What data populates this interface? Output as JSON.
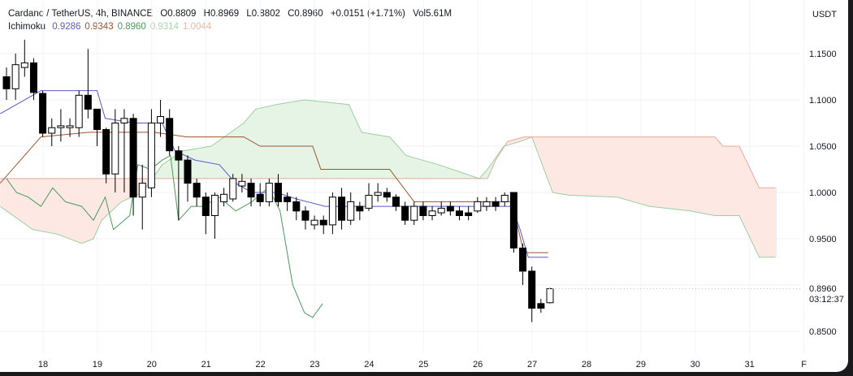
{
  "header": {
    "symbol": "Cardano / TetherUS, 4h, BINANCE",
    "open": "O0.8809",
    "high": "H0.8969",
    "low": "L0.8802",
    "close": "C0.8960",
    "change": "+0.0151 (+1.71%)",
    "volume": "Vol5.61M"
  },
  "ichimoku": {
    "label": "Ichimoku",
    "values": [
      {
        "v": "0.9286",
        "color": "#5b57d1"
      },
      {
        "v": "0.9343",
        "color": "#a0522d"
      },
      {
        "v": "0.8960",
        "color": "#4a9a5a"
      },
      {
        "v": "0.9314",
        "color": "#a8d5b0"
      },
      {
        "v": "1.0044",
        "color": "#e8b9a8"
      }
    ]
  },
  "axis": {
    "unit": "USDT",
    "price_labels": [
      "1.1500",
      "1.1000",
      "1.0500",
      "1.0000",
      "0.9500",
      "0.8500"
    ],
    "price_values": [
      1.15,
      1.1,
      1.05,
      1.0,
      0.95,
      0.85
    ],
    "last_price": "0.8960",
    "countdown": "03:12:37",
    "time_labels": [
      "18",
      "19",
      "20",
      "21",
      "22",
      "23",
      "24",
      "25",
      "26",
      "27",
      "28",
      "29",
      "30",
      "31",
      "F"
    ]
  },
  "colors": {
    "up": "#ffffff",
    "down": "#000000",
    "tenkan": "#5b57d1",
    "kijun": "#a0522d",
    "lagging": "#4a9a5a",
    "cloud_up": "#e6f4e6",
    "cloud_down": "#fde8e4",
    "spanA": "#9ccf9f",
    "spanB": "#e8a99b"
  },
  "chart_data": {
    "type": "candlestick",
    "candles": [
      [
        1.125,
        1.135,
        1.1,
        1.112
      ],
      [
        1.112,
        1.15,
        1.1,
        1.138
      ],
      [
        1.135,
        1.165,
        1.125,
        1.14
      ],
      [
        1.14,
        1.145,
        1.1,
        1.108
      ],
      [
        1.107,
        1.11,
        1.06,
        1.064
      ],
      [
        1.064,
        1.08,
        1.05,
        1.07
      ],
      [
        1.07,
        1.09,
        1.055,
        1.072
      ],
      [
        1.07,
        1.08,
        1.06,
        1.072
      ],
      [
        1.07,
        1.11,
        1.06,
        1.105
      ],
      [
        1.105,
        1.155,
        1.08,
        1.09
      ],
      [
        1.09,
        1.09,
        1.05,
        1.068
      ],
      [
        1.068,
        1.07,
        1.01,
        1.02
      ],
      [
        1.02,
        1.09,
        1.0,
        1.075
      ],
      [
        1.075,
        1.09,
        1.0,
        1.08
      ],
      [
        1.08,
        1.085,
        0.975,
        0.995
      ],
      [
        0.995,
        1.03,
        0.96,
        1.01
      ],
      [
        1.005,
        1.09,
        0.995,
        1.075
      ],
      [
        1.075,
        1.1,
        1.06,
        1.082
      ],
      [
        1.08,
        1.09,
        1.04,
        1.045
      ],
      [
        1.045,
        1.05,
        0.97,
        1.035
      ],
      [
        1.035,
        1.04,
        0.99,
        1.01
      ],
      [
        1.01,
        1.015,
        0.985,
        0.995
      ],
      [
        0.995,
        1.0,
        0.955,
        0.975
      ],
      [
        0.975,
        1.0,
        0.95,
        0.997
      ],
      [
        0.99,
        1.005,
        0.985,
        0.998
      ],
      [
        0.993,
        1.02,
        0.99,
        1.015
      ],
      [
        1.007,
        1.02,
        1.0,
        1.012
      ],
      [
        1.01,
        1.015,
        0.985,
        0.995
      ],
      [
        0.998,
        1.01,
        0.985,
        0.99
      ],
      [
        0.99,
        1.015,
        0.985,
        1.01
      ],
      [
        1.01,
        1.02,
        0.985,
        0.99
      ],
      [
        0.995,
        1.0,
        0.98,
        0.99
      ],
      [
        0.99,
        0.995,
        0.97,
        0.98
      ],
      [
        0.98,
        0.985,
        0.96,
        0.97
      ],
      [
        0.965,
        0.975,
        0.96,
        0.97
      ],
      [
        0.97,
        0.975,
        0.955,
        0.965
      ],
      [
        0.965,
        1.0,
        0.955,
        0.995
      ],
      [
        0.995,
        1.005,
        0.96,
        0.97
      ],
      [
        0.97,
        1.0,
        0.965,
        0.99
      ],
      [
        0.985,
        0.99,
        0.97,
        0.98
      ],
      [
        0.983,
        1.01,
        0.98,
        0.997
      ],
      [
        0.997,
        1.01,
        0.99,
        1.0
      ],
      [
        1.0,
        1.005,
        0.99,
        0.995
      ],
      [
        0.995,
        0.998,
        0.98,
        0.985
      ],
      [
        0.985,
        0.99,
        0.965,
        0.97
      ],
      [
        0.97,
        0.99,
        0.965,
        0.985
      ],
      [
        0.985,
        0.99,
        0.97,
        0.975
      ],
      [
        0.975,
        0.985,
        0.97,
        0.98
      ],
      [
        0.978,
        0.99,
        0.975,
        0.983
      ],
      [
        0.985,
        0.99,
        0.975,
        0.98
      ],
      [
        0.98,
        0.985,
        0.97,
        0.975
      ],
      [
        0.978,
        0.985,
        0.97,
        0.975
      ],
      [
        0.98,
        0.995,
        0.978,
        0.99
      ],
      [
        0.985,
        0.995,
        0.98,
        0.99
      ],
      [
        0.99,
        0.995,
        0.98,
        0.985
      ],
      [
        0.99,
        1.0,
        0.985,
        0.997
      ],
      [
        1.0,
        1.0,
        0.935,
        0.94
      ],
      [
        0.94,
        0.945,
        0.9,
        0.915
      ],
      [
        0.915,
        0.92,
        0.86,
        0.875
      ],
      [
        0.88,
        0.885,
        0.87,
        0.875
      ],
      [
        0.8809,
        0.8969,
        0.8802,
        0.896
      ]
    ],
    "tenkan": [
      [
        -0.7,
        1.085
      ],
      [
        2.9,
        1.105
      ],
      [
        3.8,
        1.11
      ],
      [
        10,
        1.11
      ],
      [
        10.9,
        1.08
      ],
      [
        14.1,
        1.075
      ],
      [
        17.2,
        1.075
      ],
      [
        18.6,
        1.045
      ],
      [
        20.8,
        1.035
      ],
      [
        23.5,
        1.03
      ],
      [
        25.3,
        1.01
      ],
      [
        27.1,
        1.0
      ],
      [
        29.8,
        1.0
      ],
      [
        32,
        0.993
      ],
      [
        35.2,
        0.985
      ],
      [
        55.8,
        0.985
      ],
      [
        56.7,
        0.96
      ],
      [
        57.6,
        0.93
      ],
      [
        59.8,
        0.93
      ]
    ],
    "kijun": [
      [
        -0.7,
        1.01
      ],
      [
        2,
        1.04
      ],
      [
        3.8,
        1.06
      ],
      [
        9.1,
        1.065
      ],
      [
        16.3,
        1.065
      ],
      [
        19.9,
        1.06
      ],
      [
        26.2,
        1.06
      ],
      [
        28,
        1.05
      ],
      [
        33.8,
        1.05
      ],
      [
        34.7,
        1.025
      ],
      [
        42.3,
        1.025
      ],
      [
        45,
        0.99
      ],
      [
        55.8,
        0.99
      ],
      [
        57.1,
        0.935
      ],
      [
        59.8,
        0.935
      ]
    ],
    "lagging": [
      [
        0,
        1.015
      ],
      [
        1.1,
        1.0
      ],
      [
        2.4,
        0.995
      ],
      [
        3.8,
        0.985
      ],
      [
        5.1,
        1.005
      ],
      [
        6.5,
        0.99
      ],
      [
        8.3,
        0.985
      ],
      [
        9.6,
        0.97
      ],
      [
        10.9,
        0.995
      ],
      [
        11.8,
        0.96
      ],
      [
        13.6,
        0.975
      ],
      [
        14.5,
        1.03
      ],
      [
        15.9,
        1.025
      ],
      [
        17.2,
        1.035
      ],
      [
        18.1,
        1.04
      ],
      [
        19,
        0.97
      ],
      [
        20.4,
        0.985
      ],
      [
        21.7,
        0.985
      ],
      [
        23.5,
        0.995
      ],
      [
        25.3,
        0.98
      ],
      [
        27.1,
        0.99
      ],
      [
        28.9,
        1.005
      ],
      [
        30.2,
        0.98
      ],
      [
        31.6,
        0.9
      ],
      [
        32.9,
        0.87
      ],
      [
        33.8,
        0.865
      ],
      [
        34.9,
        0.88
      ]
    ],
    "spanA": [
      [
        -0.7,
        0.985
      ],
      [
        2.9,
        0.96
      ],
      [
        5.6,
        0.955
      ],
      [
        8.3,
        0.945
      ],
      [
        9.6,
        0.95
      ],
      [
        10.5,
        0.97
      ],
      [
        12.7,
        0.99
      ],
      [
        15,
        1.0
      ],
      [
        17.2,
        1.03
      ],
      [
        19.5,
        1.045
      ],
      [
        22.6,
        1.05
      ],
      [
        26.2,
        1.075
      ],
      [
        27.5,
        1.09
      ],
      [
        29.8,
        1.095
      ],
      [
        32.9,
        1.1
      ],
      [
        37.8,
        1.095
      ],
      [
        39.2,
        1.065
      ],
      [
        42.3,
        1.06
      ],
      [
        44.1,
        1.04
      ],
      [
        47.7,
        1.03
      ],
      [
        52.2,
        1.015
      ],
      [
        53.1,
        1.025
      ],
      [
        54.9,
        1.05
      ],
      [
        56.7,
        1.055
      ],
      [
        58,
        1.06
      ],
      [
        60.3,
        1.0
      ],
      [
        62.1,
        0.997
      ],
      [
        67.4,
        0.995
      ],
      [
        71,
        0.985
      ],
      [
        75.5,
        0.98
      ],
      [
        78.2,
        0.975
      ],
      [
        80.9,
        0.975
      ],
      [
        83.1,
        0.93
      ],
      [
        84.9,
        0.93
      ]
    ],
    "spanB": [
      [
        -0.7,
        1.015
      ],
      [
        19.9,
        1.015
      ],
      [
        53.1,
        1.015
      ],
      [
        54,
        1.035
      ],
      [
        55.3,
        1.055
      ],
      [
        57.1,
        1.06
      ],
      [
        78.2,
        1.06
      ],
      [
        79.1,
        1.05
      ],
      [
        80.9,
        1.05
      ],
      [
        83.1,
        1.005
      ],
      [
        84.9,
        1.005
      ]
    ]
  }
}
